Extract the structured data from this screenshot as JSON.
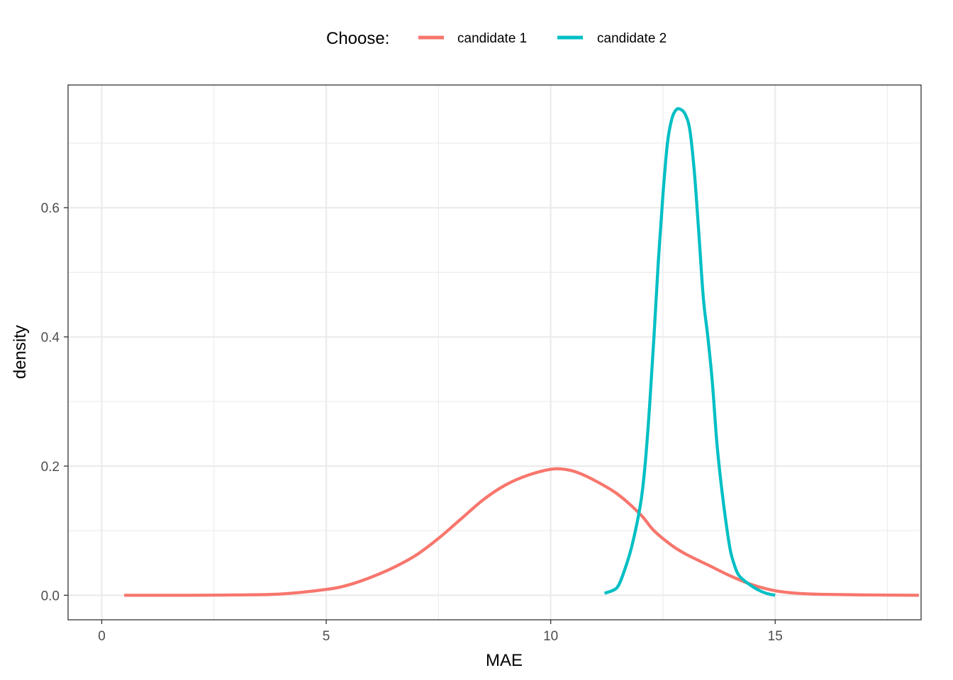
{
  "chart_data": {
    "type": "line",
    "title": "",
    "xlabel": "MAE",
    "ylabel": "density",
    "xlim": [
      -0.75,
      18.25
    ],
    "ylim": [
      -0.038,
      0.79
    ],
    "x_ticks": [
      0,
      5,
      10,
      15
    ],
    "y_ticks": [
      0.0,
      0.2,
      0.4,
      0.6
    ],
    "x_tick_labels": [
      "0",
      "5",
      "10",
      "15"
    ],
    "y_tick_labels": [
      "0.0",
      "0.2",
      "0.4",
      "0.6"
    ],
    "x_minor_ticks": [
      2.5,
      7.5,
      12.5,
      17.5
    ],
    "y_minor_ticks": [
      0.1,
      0.3,
      0.5,
      0.7
    ],
    "grid": true,
    "legend": {
      "title": "Choose:",
      "position": "top"
    },
    "series": [
      {
        "name": "candidate 1",
        "color": "#F8766D",
        "points": [
          [
            0.5,
            0.0
          ],
          [
            2.0,
            0.0
          ],
          [
            3.0,
            0.0005
          ],
          [
            4.0,
            0.002
          ],
          [
            5.0,
            0.009
          ],
          [
            5.5,
            0.016
          ],
          [
            6.0,
            0.028
          ],
          [
            6.5,
            0.043
          ],
          [
            7.0,
            0.062
          ],
          [
            7.5,
            0.088
          ],
          [
            8.0,
            0.118
          ],
          [
            8.5,
            0.148
          ],
          [
            9.0,
            0.171
          ],
          [
            9.5,
            0.186
          ],
          [
            10.0,
            0.195
          ],
          [
            10.3,
            0.195
          ],
          [
            10.6,
            0.19
          ],
          [
            11.0,
            0.177
          ],
          [
            11.5,
            0.156
          ],
          [
            12.0,
            0.125
          ],
          [
            12.3,
            0.1
          ],
          [
            12.7,
            0.077
          ],
          [
            13.0,
            0.064
          ],
          [
            13.5,
            0.047
          ],
          [
            14.0,
            0.03
          ],
          [
            14.5,
            0.016
          ],
          [
            15.0,
            0.007
          ],
          [
            15.5,
            0.003
          ],
          [
            16.0,
            0.0015
          ],
          [
            17.0,
            0.0005
          ],
          [
            18.2,
            0.0
          ]
        ]
      },
      {
        "name": "candidate 2",
        "color": "#00BFC4",
        "points": [
          [
            11.2,
            0.003
          ],
          [
            11.4,
            0.008
          ],
          [
            11.5,
            0.014
          ],
          [
            11.6,
            0.03
          ],
          [
            11.8,
            0.074
          ],
          [
            12.0,
            0.141
          ],
          [
            12.1,
            0.2
          ],
          [
            12.2,
            0.29
          ],
          [
            12.3,
            0.4
          ],
          [
            12.4,
            0.52
          ],
          [
            12.5,
            0.62
          ],
          [
            12.6,
            0.7
          ],
          [
            12.7,
            0.738
          ],
          [
            12.8,
            0.752
          ],
          [
            12.9,
            0.752
          ],
          [
            13.0,
            0.744
          ],
          [
            13.1,
            0.72
          ],
          [
            13.2,
            0.655
          ],
          [
            13.3,
            0.56
          ],
          [
            13.4,
            0.46
          ],
          [
            13.5,
            0.4
          ],
          [
            13.6,
            0.33
          ],
          [
            13.7,
            0.237
          ],
          [
            13.8,
            0.17
          ],
          [
            13.9,
            0.115
          ],
          [
            14.0,
            0.07
          ],
          [
            14.1,
            0.045
          ],
          [
            14.2,
            0.03
          ],
          [
            14.4,
            0.018
          ],
          [
            14.6,
            0.009
          ],
          [
            14.8,
            0.003
          ],
          [
            15.0,
            0.0
          ]
        ]
      }
    ]
  }
}
